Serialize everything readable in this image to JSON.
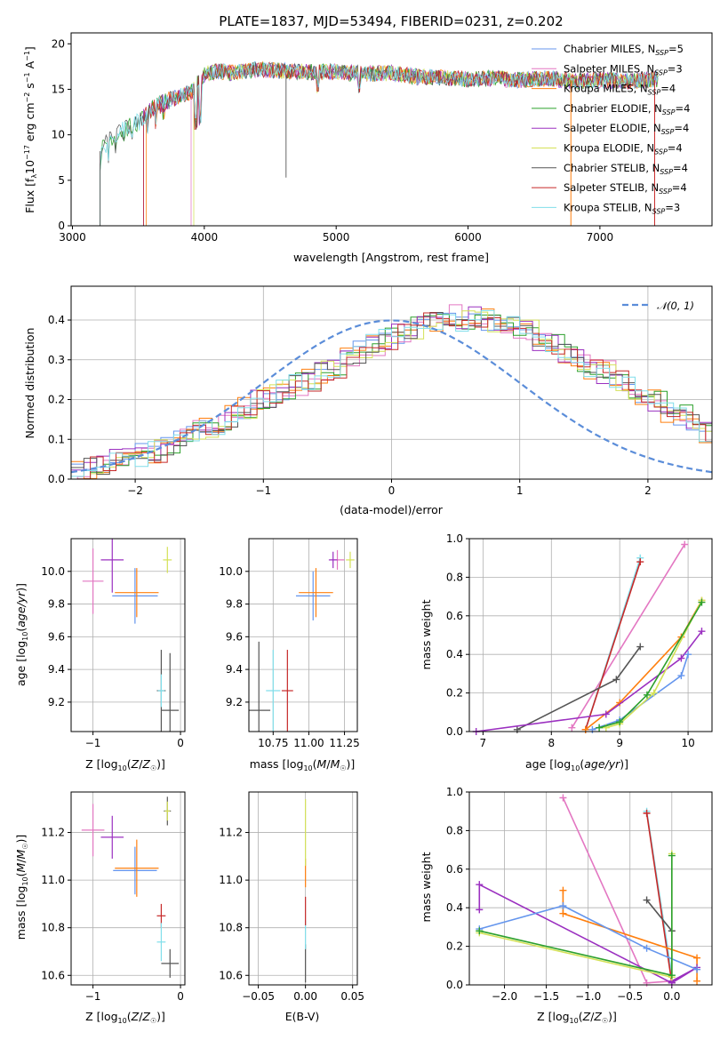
{
  "chart_data": [
    {
      "id": "spectrum",
      "type": "line",
      "title": "PLATE=1837, MJD=53494, FIBERID=0231, z=0.202",
      "xlabel": "wavelength [Angstrom, rest frame]",
      "ylabel": "Flux [f_λ10^-17 erg cm^-2 s^-1 A^-1]",
      "xlim": [
        2990,
        7850
      ],
      "ylim": [
        0,
        21.2
      ],
      "xticks": [
        3000,
        4000,
        5000,
        6000,
        7000
      ],
      "yticks": [
        0,
        5,
        10,
        15,
        20
      ],
      "grid": false,
      "legend_position": "top-right",
      "x": [
        3210,
        3300,
        3400,
        3500,
        3600,
        3700,
        3800,
        3900,
        4000,
        4100,
        4200,
        4400,
        4600,
        4800,
        5000,
        5200,
        5400,
        5600,
        5800,
        6000,
        6200,
        6400,
        6600,
        6800,
        7000,
        7200,
        7400
      ],
      "y": [
        8.2,
        9.8,
        10.6,
        11.4,
        12.8,
        13.6,
        14.2,
        14.7,
        16.6,
        17.0,
        16.8,
        17.2,
        17.0,
        16.9,
        16.9,
        16.7,
        16.8,
        16.4,
        16.3,
        16.1,
        16.2,
        16.0,
        16.2,
        15.9,
        16.0,
        15.9,
        16.1
      ],
      "series": [
        {
          "name": "Chabrier MILES, N_SSP=5",
          "color": "#6495ED"
        },
        {
          "name": "Salpeter MILES, N_SSP=3",
          "color": "#E377C2"
        },
        {
          "name": "Kroupa MILES, N_SSP=4",
          "color": "#FF7F0E"
        },
        {
          "name": "Chabrier ELODIE, N_SSP=4",
          "color": "#2CA02C"
        },
        {
          "name": "Salpeter ELODIE, N_SSP=4",
          "color": "#9B30C0"
        },
        {
          "name": "Kroupa ELODIE, N_SSP=4",
          "color": "#D4E157"
        },
        {
          "name": "Chabrier STELIB, N_SSP=4",
          "color": "#555555"
        },
        {
          "name": "Salpeter STELIB, N_SSP=4",
          "color": "#C62828"
        },
        {
          "name": "Kroupa STELIB, N_SSP=3",
          "color": "#80DEEA"
        }
      ]
    },
    {
      "id": "residuals",
      "type": "histogram",
      "xlabel": "(data-model)/error",
      "ylabel": "Normed distribution",
      "xlim": [
        -2.5,
        2.5
      ],
      "ylim": [
        0,
        0.485
      ],
      "xticks": [
        -2,
        -1,
        0,
        1,
        2
      ],
      "yticks": [
        0.0,
        0.1,
        0.2,
        0.3,
        0.4
      ],
      "grid": true,
      "legend": "𝒩(0, 1)",
      "legend_position": "top-right",
      "bin_width": 0.1,
      "bins_start": -2.5,
      "densities": [
        0.02,
        0.03,
        0.035,
        0.045,
        0.05,
        0.06,
        0.07,
        0.08,
        0.1,
        0.12,
        0.13,
        0.14,
        0.16,
        0.18,
        0.2,
        0.21,
        0.22,
        0.24,
        0.25,
        0.27,
        0.28,
        0.3,
        0.32,
        0.34,
        0.35,
        0.37,
        0.38,
        0.39,
        0.4,
        0.41,
        0.4,
        0.41,
        0.4,
        0.39,
        0.38,
        0.37,
        0.35,
        0.34,
        0.32,
        0.3,
        0.28,
        0.27,
        0.25,
        0.23,
        0.21,
        0.2,
        0.17,
        0.16,
        0.14,
        0.12,
        0.11,
        0.09,
        0.08,
        0.07,
        0.06,
        0.05,
        0.045,
        0.04,
        0.035,
        0.03
      ],
      "curve": {
        "type": "normal",
        "mu": 0,
        "sigma": 1,
        "color": "#5B8DD9"
      }
    },
    {
      "id": "Z_vs_age",
      "type": "errorbar",
      "xlabel": "Z [log10(Z/Z☉)]",
      "ylabel": "age  [log10(age/yr)]",
      "xlim": [
        -1.25,
        0.05
      ],
      "ylim": [
        9.02,
        10.2
      ],
      "xticks": [
        -1,
        0
      ],
      "yticks": [
        9.2,
        9.4,
        9.6,
        9.8,
        10.0
      ],
      "grid": true,
      "points": [
        {
          "x": -1.0,
          "xerr": 0.12,
          "y": 9.94,
          "yerr": 0.2,
          "color": "#E377C2"
        },
        {
          "x": -0.78,
          "xerr": 0.13,
          "y": 10.07,
          "yerr": 0.2,
          "color": "#9B30C0"
        },
        {
          "x": -0.52,
          "xerr": 0.26,
          "y": 9.85,
          "yerr": 0.17,
          "color": "#6495ED"
        },
        {
          "x": -0.5,
          "xerr": 0.25,
          "y": 9.87,
          "yerr": 0.15,
          "color": "#FF7F0E"
        },
        {
          "x": -0.15,
          "xerr": 0.05,
          "y": 10.07,
          "yerr": 0.08,
          "color": "#D4E157"
        },
        {
          "x": -0.22,
          "xerr": 0.05,
          "y": 9.27,
          "yerr": 0.25,
          "color": "#555555"
        },
        {
          "x": -0.22,
          "xerr": 0.04,
          "y": 9.27,
          "yerr": 0.1,
          "color": "#80DEEA"
        },
        {
          "x": -0.12,
          "xerr": 0.1,
          "y": 9.15,
          "yerr": 0.35,
          "color": "#555555"
        }
      ]
    },
    {
      "id": "mass_vs_age",
      "type": "errorbar",
      "xlabel": "mass [log10(M/M☉)]",
      "ylabel": "",
      "xlim": [
        10.58,
        11.34
      ],
      "ylim": [
        9.02,
        10.2
      ],
      "xticks": [
        10.75,
        11.0,
        11.25
      ],
      "xticklabels": [
        "10.75",
        "11.00",
        "11.25"
      ],
      "yticks": [
        9.2,
        9.4,
        9.6,
        9.8,
        10.0
      ],
      "grid": true,
      "points": [
        {
          "x": 10.65,
          "xerr": 0.08,
          "y": 9.15,
          "yerr": 0.42,
          "color": "#555555"
        },
        {
          "x": 10.75,
          "xerr": 0.05,
          "y": 9.27,
          "yerr": 0.25,
          "color": "#80DEEA"
        },
        {
          "x": 10.85,
          "xerr": 0.04,
          "y": 9.27,
          "yerr": 0.25,
          "color": "#C62828"
        },
        {
          "x": 11.03,
          "xerr": 0.12,
          "y": 9.85,
          "yerr": 0.15,
          "color": "#6495ED"
        },
        {
          "x": 11.05,
          "xerr": 0.12,
          "y": 9.87,
          "yerr": 0.15,
          "color": "#FF7F0E"
        },
        {
          "x": 11.2,
          "xerr": 0.05,
          "y": 10.07,
          "yerr": 0.06,
          "color": "#E377C2"
        },
        {
          "x": 11.17,
          "xerr": 0.03,
          "y": 10.07,
          "yerr": 0.05,
          "color": "#9B30C0"
        },
        {
          "x": 11.29,
          "xerr": 0.03,
          "y": 10.07,
          "yerr": 0.05,
          "color": "#D4E157"
        }
      ]
    },
    {
      "id": "age_weights",
      "type": "line",
      "xlabel": "age  [log10(age/yr)]",
      "ylabel": "mass weight",
      "xlim": [
        6.8,
        10.35
      ],
      "ylim": [
        0,
        1.0
      ],
      "xticks": [
        7,
        8,
        9,
        10
      ],
      "yticks": [
        0.0,
        0.2,
        0.4,
        0.6,
        0.8,
        1.0
      ],
      "grid": true,
      "series": [
        {
          "color": "#E377C2",
          "x": [
            8.3,
            9.95
          ],
          "y": [
            0.02,
            0.97
          ]
        },
        {
          "color": "#80DEEA",
          "x": [
            8.5,
            9.3
          ],
          "y": [
            0.01,
            0.9
          ]
        },
        {
          "color": "#C62828",
          "x": [
            8.5,
            9.3
          ],
          "y": [
            0.01,
            0.88
          ]
        },
        {
          "color": "#555555",
          "x": [
            7.5,
            8.95,
            9.3
          ],
          "y": [
            0.01,
            0.27,
            0.44
          ]
        },
        {
          "color": "#FF7F0E",
          "x": [
            8.5,
            9.0,
            9.9,
            10.2
          ],
          "y": [
            0.01,
            0.15,
            0.49,
            0.68
          ]
        },
        {
          "color": "#9B30C0",
          "x": [
            6.9,
            8.8,
            9.9,
            10.2
          ],
          "y": [
            0.0,
            0.09,
            0.38,
            0.52
          ]
        },
        {
          "color": "#6495ED",
          "x": [
            8.6,
            9.0,
            9.9,
            10.0
          ],
          "y": [
            0.01,
            0.06,
            0.29,
            0.4
          ]
        },
        {
          "color": "#D4E157",
          "x": [
            8.8,
            9.0,
            9.5,
            10.2
          ],
          "y": [
            0.02,
            0.04,
            0.2,
            0.68
          ]
        },
        {
          "color": "#2CA02C",
          "x": [
            8.7,
            9.0,
            9.4,
            10.2
          ],
          "y": [
            0.02,
            0.05,
            0.19,
            0.67
          ]
        }
      ]
    },
    {
      "id": "Z_vs_mass",
      "type": "errorbar",
      "xlabel": "Z [log10(Z/Z☉)]",
      "ylabel": "mass [log10(M/M☉)]",
      "xlim": [
        -1.25,
        0.05
      ],
      "ylim": [
        10.56,
        11.37
      ],
      "xticks": [
        -1,
        0
      ],
      "yticks": [
        10.6,
        10.8,
        11.0,
        11.2
      ],
      "grid": true,
      "points": [
        {
          "x": -1.0,
          "xerr": 0.13,
          "y": 11.21,
          "yerr": 0.11,
          "color": "#E377C2"
        },
        {
          "x": -0.78,
          "xerr": 0.13,
          "y": 11.18,
          "yerr": 0.09,
          "color": "#9B30C0"
        },
        {
          "x": -0.52,
          "xerr": 0.25,
          "y": 11.04,
          "yerr": 0.1,
          "color": "#6495ED"
        },
        {
          "x": -0.5,
          "xerr": 0.25,
          "y": 11.05,
          "yerr": 0.12,
          "color": "#FF7F0E"
        },
        {
          "x": -0.15,
          "xerr": 0.04,
          "y": 11.29,
          "yerr": 0.06,
          "color": "#555555"
        },
        {
          "x": -0.15,
          "xerr": 0.03,
          "y": 11.29,
          "yerr": 0.04,
          "color": "#D4E157"
        },
        {
          "x": -0.22,
          "xerr": 0.05,
          "y": 10.85,
          "yerr": 0.05,
          "color": "#C62828"
        },
        {
          "x": -0.22,
          "xerr": 0.05,
          "y": 10.74,
          "yerr": 0.08,
          "color": "#80DEEA"
        },
        {
          "x": -0.12,
          "xerr": 0.1,
          "y": 10.65,
          "yerr": 0.06,
          "color": "#555555"
        }
      ]
    },
    {
      "id": "ebv_vs_mass",
      "type": "errorbar",
      "xlabel": "E(B-V)",
      "ylabel": "",
      "xlim": [
        -0.06,
        0.055
      ],
      "ylim": [
        10.56,
        11.37
      ],
      "xticks": [
        -0.05,
        0.0,
        0.05
      ],
      "xticklabels": [
        "−0.05",
        "0.00",
        "0.05"
      ],
      "yticks": [
        10.6,
        10.8,
        11.0,
        11.2
      ],
      "grid": true,
      "points": [
        {
          "x": 0.0,
          "xerr": 0.0,
          "y": 10.65,
          "yerr": 0.08,
          "color": "#555555"
        },
        {
          "x": 0.0,
          "xerr": 0.0,
          "y": 10.77,
          "yerr": 0.06,
          "color": "#80DEEA"
        },
        {
          "x": 0.0,
          "xerr": 0.0,
          "y": 10.87,
          "yerr": 0.06,
          "color": "#C62828"
        },
        {
          "x": 0.0,
          "xerr": 0.0,
          "y": 11.03,
          "yerr": 0.06,
          "color": "#FF7F0E"
        },
        {
          "x": 0.0,
          "xerr": 0.0,
          "y": 11.2,
          "yerr": 0.14,
          "color": "#D4E157"
        }
      ]
    },
    {
      "id": "Z_weights",
      "type": "line",
      "xlabel": "Z [log10(Z/Z☉)]",
      "ylabel": "mass weight",
      "xlim": [
        -2.42,
        0.48
      ],
      "ylim": [
        0,
        1.0
      ],
      "xticks": [
        -2.0,
        -1.5,
        -1.0,
        -0.5,
        0.0
      ],
      "xticklabels": [
        "−2.0",
        "−1.5",
        "−1.0",
        "−0.5",
        "0.0"
      ],
      "yticks": [
        0.0,
        0.2,
        0.4,
        0.6,
        0.8,
        1.0
      ],
      "grid": true,
      "series": [
        {
          "color": "#E377C2",
          "x": [
            -1.3,
            -0.3,
            0.0
          ],
          "y": [
            0.97,
            0.01,
            0.02
          ]
        },
        {
          "color": "#80DEEA",
          "x": [
            -0.3,
            0.0
          ],
          "y": [
            0.9,
            0.05
          ]
        },
        {
          "color": "#C62828",
          "x": [
            -0.3,
            0.0
          ],
          "y": [
            0.89,
            0.01
          ]
        },
        {
          "color": "#555555",
          "x": [
            -0.3,
            0.0,
            0.0
          ],
          "y": [
            0.44,
            0.28,
            0.01
          ]
        },
        {
          "color": "#FF7F0E",
          "x": [
            -1.3,
            -1.3,
            0.3,
            0.3
          ],
          "y": [
            0.49,
            0.37,
            0.14,
            0.02
          ]
        },
        {
          "color": "#9B30C0",
          "x": [
            -2.3,
            -2.3,
            0.0,
            0.3,
            0.0
          ],
          "y": [
            0.39,
            0.52,
            0.01,
            0.09,
            0.02
          ]
        },
        {
          "color": "#6495ED",
          "x": [
            -2.3,
            -1.3,
            -0.3,
            0.3
          ],
          "y": [
            0.29,
            0.41,
            0.19,
            0.08
          ]
        },
        {
          "color": "#D4E157",
          "x": [
            -2.3,
            0.0,
            0.0
          ],
          "y": [
            0.27,
            0.04,
            0.68
          ]
        },
        {
          "color": "#2CA02C",
          "x": [
            -2.3,
            0.0,
            0.0
          ],
          "y": [
            0.28,
            0.05,
            0.67
          ]
        }
      ]
    }
  ]
}
